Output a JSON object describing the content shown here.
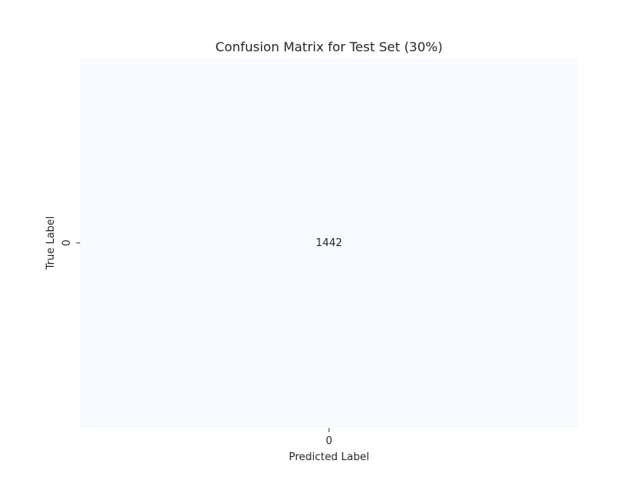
{
  "chart_data": {
    "type": "heatmap",
    "title": "Confusion Matrix for Test Set (30%)",
    "xlabel": "Predicted Label",
    "ylabel": "True Label",
    "x_categories": [
      "0"
    ],
    "y_categories": [
      "0"
    ],
    "values": [
      [
        1442
      ]
    ],
    "colorscale": "Blues",
    "cell_color": "#f7fbff",
    "colorbar": false,
    "grid": false
  }
}
